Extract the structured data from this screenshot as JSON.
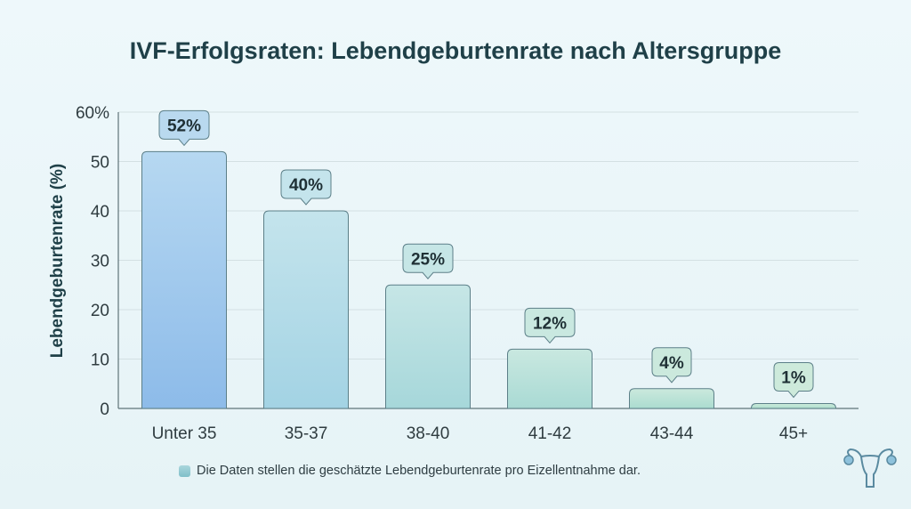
{
  "chart_data": {
    "type": "bar",
    "title": "IVF-Erfolgsraten: Lebendgeburtenrate nach Altersgruppe",
    "xlabel": "",
    "ylabel": "Lebendgeburtenrate (%)",
    "ylim": [
      0,
      60
    ],
    "yticks": [
      0,
      10,
      20,
      30,
      40,
      50,
      60
    ],
    "ytick_labels": [
      "0",
      "10",
      "20",
      "30",
      "40",
      "50",
      "60%"
    ],
    "categories": [
      "Unter 35",
      "35-37",
      "38-40",
      "41-42",
      "43-44",
      "45+"
    ],
    "values": [
      52,
      40,
      25,
      12,
      4,
      1
    ],
    "data_labels": [
      "52%",
      "40%",
      "25%",
      "12%",
      "4%",
      "1%"
    ],
    "grid": true,
    "colors": [
      "#a6cbef",
      "#a3d3e4",
      "#a6d7da",
      "#a9dad4",
      "#abdcd0",
      "#addecd"
    ],
    "label_bubble_colors": [
      "#b9d9ef",
      "#c4e4ec",
      "#c6e6e6",
      "#c9e8e0",
      "#cbe9dd",
      "#cdeadb"
    ]
  },
  "footnote": "Die Daten stellen die geschätzte Lebendgeburtenrate pro Eizellentnahme dar.",
  "logo_icon": "uterus-icon"
}
